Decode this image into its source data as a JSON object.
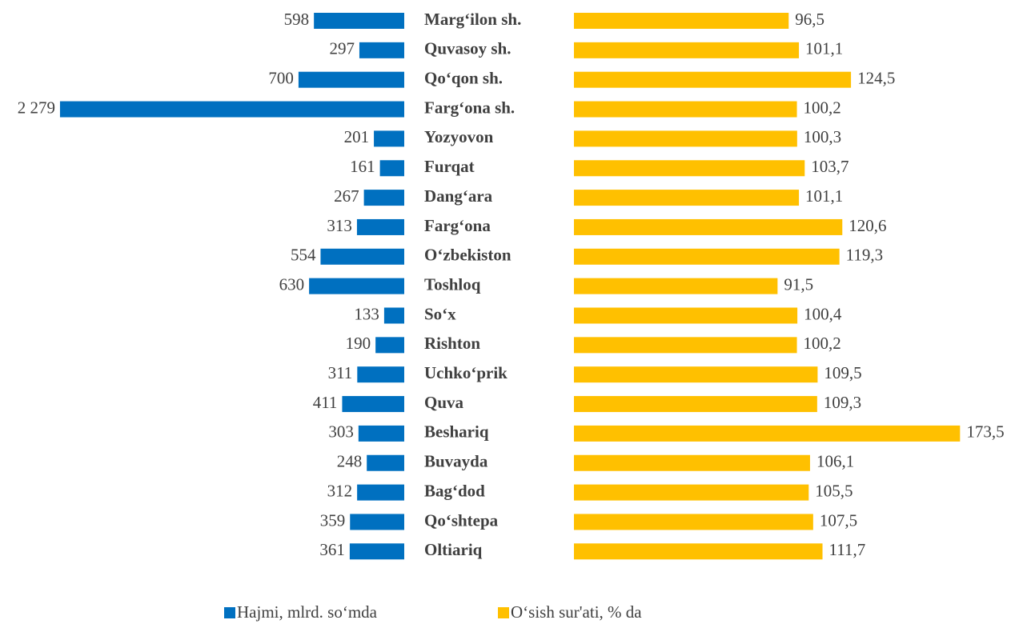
{
  "chart_data": {
    "type": "butterfly-bar",
    "categories": [
      "Marg‘ilon sh.",
      "Quvasoy sh.",
      "Qo‘qon sh.",
      "Farg‘ona sh.",
      "Yozyovon",
      "Furqat",
      "Dang‘ara",
      "Farg‘ona",
      "O‘zbekiston",
      "Toshloq",
      "So‘x",
      "Rishton",
      "Uchko‘prik",
      "Quva",
      "Beshariq",
      "Buvayda",
      "Bag‘dod",
      "Qo‘shtepa",
      "Oltiariq"
    ],
    "series": [
      {
        "name": "Hajmi, mlrd. so‘mda",
        "color": "#0070c0",
        "values": [
          598,
          297,
          700,
          2279,
          201,
          161,
          267,
          313,
          554,
          630,
          133,
          190,
          311,
          411,
          303,
          248,
          312,
          359,
          361
        ],
        "value_labels": [
          "598",
          "297",
          "700",
          "2 279",
          "201",
          "161",
          "267",
          "313",
          "554",
          "630",
          "133",
          "190",
          "311",
          "411",
          "303",
          "248",
          "312",
          "359",
          "361"
        ]
      },
      {
        "name": "O‘sish sur'ati, % da",
        "color": "#ffc000",
        "values": [
          96.5,
          101.1,
          124.5,
          100.2,
          100.3,
          103.7,
          101.1,
          120.6,
          119.3,
          91.5,
          100.4,
          100.2,
          109.5,
          109.3,
          173.5,
          106.1,
          105.5,
          107.5,
          111.7
        ],
        "value_labels": [
          "96,5",
          "101,1",
          "124,5",
          "100,2",
          "100,3",
          "103,7",
          "101,1",
          "120,6",
          "119,3",
          "91,5",
          "100,4",
          "100,2",
          "109,5",
          "109,3",
          "173,5",
          "106,1",
          "105,5",
          "107,5",
          "111,7"
        ]
      }
    ],
    "legend": "bottom"
  }
}
